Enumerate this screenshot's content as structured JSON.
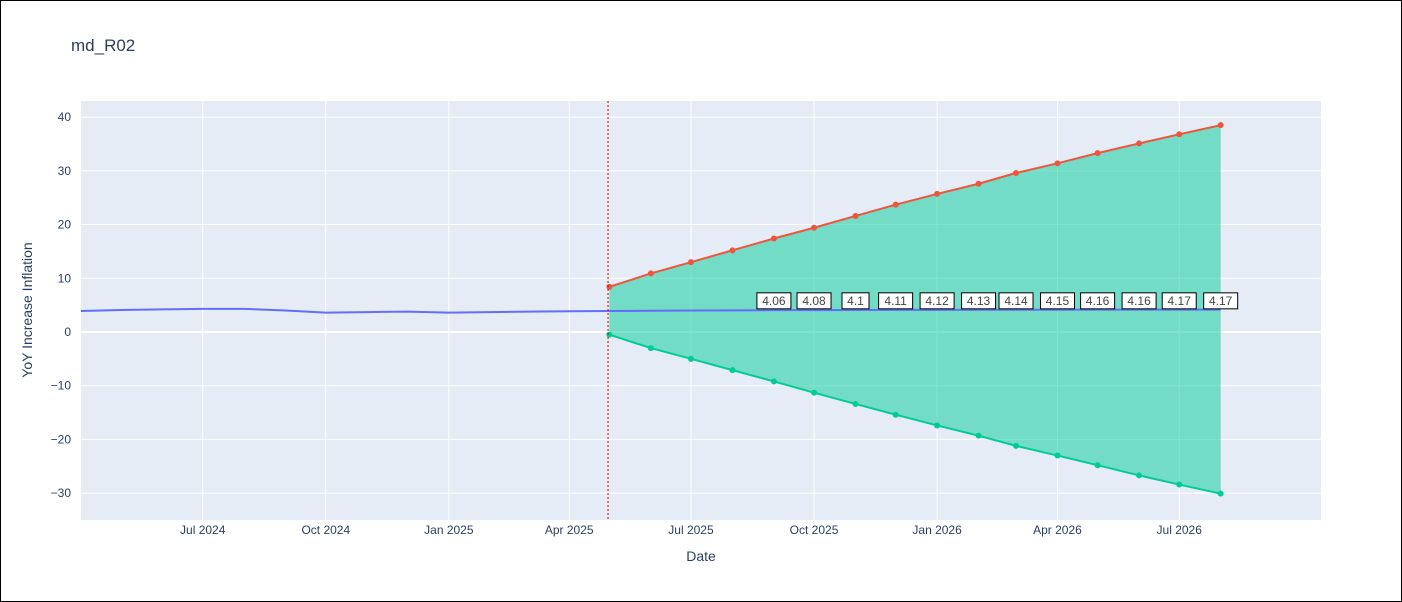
{
  "chart_data": {
    "type": "line",
    "title": "md_R02",
    "xlabel": "Date",
    "ylabel": "YoY Increase Inflation",
    "x_range": [
      "2024-04-01",
      "2026-10-15"
    ],
    "ylim": [
      -35,
      43
    ],
    "y_ticks": [
      -30,
      -20,
      -10,
      0,
      10,
      20,
      30,
      40
    ],
    "x_ticks": [
      {
        "date": "2024-07-01",
        "label": "Jul 2024"
      },
      {
        "date": "2024-10-01",
        "label": "Oct 2024"
      },
      {
        "date": "2025-01-01",
        "label": "Jan 2025"
      },
      {
        "date": "2025-04-01",
        "label": "Apr 2025"
      },
      {
        "date": "2025-07-01",
        "label": "Jul 2025"
      },
      {
        "date": "2025-10-01",
        "label": "Oct 2025"
      },
      {
        "date": "2026-01-01",
        "label": "Jan 2026"
      },
      {
        "date": "2026-04-01",
        "label": "Apr 2026"
      },
      {
        "date": "2026-07-01",
        "label": "Jul 2026"
      }
    ],
    "vline": {
      "date": "2025-04-30",
      "color": "#cc0000",
      "style": "dotted"
    },
    "grid": true,
    "plot_bgcolor": "#e5ecf6",
    "series": [
      {
        "color": "#636efa",
        "mode": "lines",
        "x": [
          "2024-04-01",
          "2024-05-01",
          "2024-06-01",
          "2024-07-01",
          "2024-08-01",
          "2024-09-01",
          "2024-10-01",
          "2024-11-01",
          "2024-12-01",
          "2025-01-01",
          "2025-02-01",
          "2025-03-01",
          "2025-04-01",
          "2025-05-01",
          "2025-06-01",
          "2025-07-01",
          "2025-08-01",
          "2025-09-01",
          "2025-10-01",
          "2025-11-01",
          "2025-12-01",
          "2026-01-01",
          "2026-02-01",
          "2026-03-01",
          "2026-04-01",
          "2026-05-01",
          "2026-06-01",
          "2026-07-01",
          "2026-08-01"
        ],
        "y": [
          3.9,
          4.1,
          4.2,
          4.3,
          4.3,
          4.0,
          3.6,
          3.7,
          3.8,
          3.6,
          3.7,
          3.8,
          3.85,
          3.9,
          3.95,
          4.0,
          4.02,
          4.06,
          4.08,
          4.1,
          4.11,
          4.12,
          4.13,
          4.14,
          4.15,
          4.16,
          4.16,
          4.17,
          4.17
        ]
      },
      {
        "color": "#ef553b",
        "mode": "lines+markers",
        "x": [
          "2025-05-01",
          "2025-06-01",
          "2025-07-01",
          "2025-08-01",
          "2025-09-01",
          "2025-10-01",
          "2025-11-01",
          "2025-12-01",
          "2026-01-01",
          "2026-02-01",
          "2026-03-01",
          "2026-04-01",
          "2026-05-01",
          "2026-06-01",
          "2026-07-01",
          "2026-08-01"
        ],
        "y": [
          8.4,
          10.9,
          13.0,
          15.2,
          17.4,
          19.4,
          21.6,
          23.7,
          25.7,
          27.6,
          29.6,
          31.4,
          33.3,
          35.1,
          36.8,
          38.5
        ]
      },
      {
        "color": "#00cc96",
        "mode": "lines+markers",
        "fill": "tonexty",
        "fillcolor": "rgba(0,204,150,0.5)",
        "x": [
          "2025-05-01",
          "2025-06-01",
          "2025-07-01",
          "2025-08-01",
          "2025-09-01",
          "2025-10-01",
          "2025-11-01",
          "2025-12-01",
          "2026-01-01",
          "2026-02-01",
          "2026-03-01",
          "2026-04-01",
          "2026-05-01",
          "2026-06-01",
          "2026-07-01",
          "2026-08-01"
        ],
        "y": [
          -0.5,
          -3.0,
          -5.0,
          -7.1,
          -9.2,
          -11.3,
          -13.4,
          -15.4,
          -17.4,
          -19.3,
          -21.2,
          -23.0,
          -24.8,
          -26.7,
          -28.4,
          -30.1
        ]
      }
    ],
    "annotations": [
      {
        "x": "2025-09-01",
        "y": 5.8,
        "text": "4.06"
      },
      {
        "x": "2025-10-01",
        "y": 5.8,
        "text": "4.08"
      },
      {
        "x": "2025-11-01",
        "y": 5.8,
        "text": "4.1"
      },
      {
        "x": "2025-12-01",
        "y": 5.8,
        "text": "4.11"
      },
      {
        "x": "2026-01-01",
        "y": 5.8,
        "text": "4.12"
      },
      {
        "x": "2026-02-01",
        "y": 5.8,
        "text": "4.13"
      },
      {
        "x": "2026-03-01",
        "y": 5.8,
        "text": "4.14"
      },
      {
        "x": "2026-04-01",
        "y": 5.8,
        "text": "4.15"
      },
      {
        "x": "2026-05-01",
        "y": 5.8,
        "text": "4.16"
      },
      {
        "x": "2026-06-01",
        "y": 5.8,
        "text": "4.16"
      },
      {
        "x": "2026-07-01",
        "y": 5.8,
        "text": "4.17"
      },
      {
        "x": "2026-08-01",
        "y": 5.8,
        "text": "4.17"
      }
    ]
  }
}
